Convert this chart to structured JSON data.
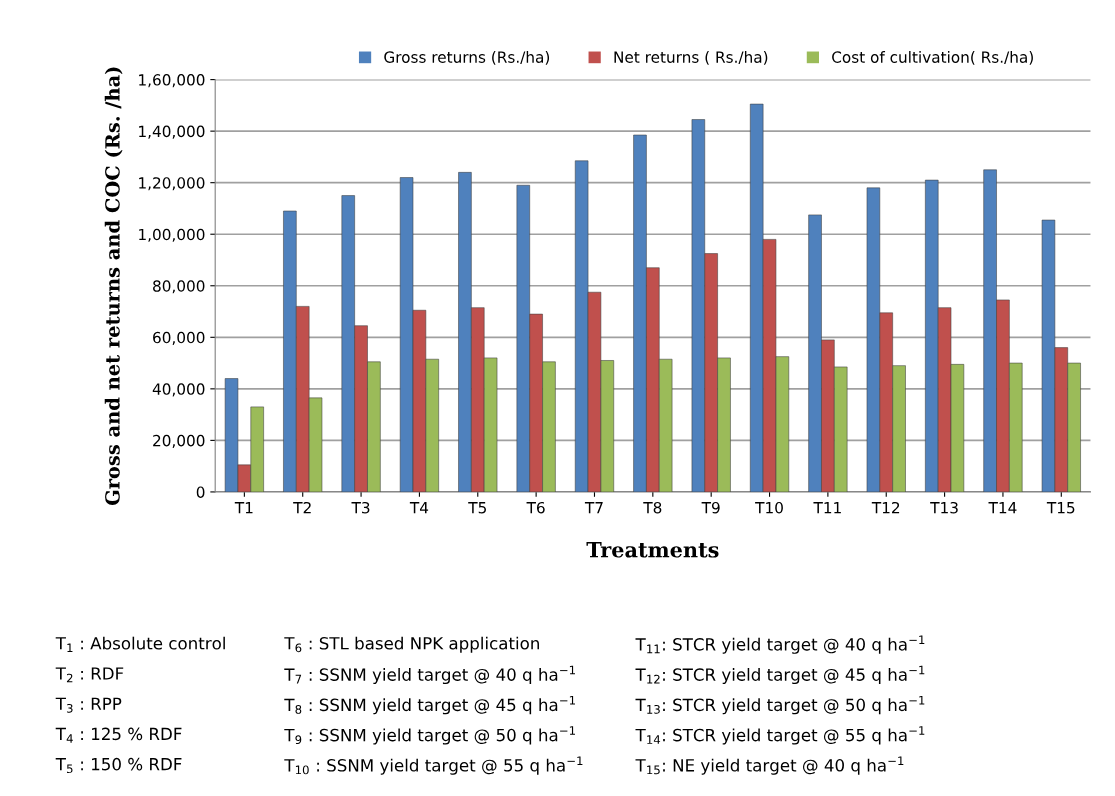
{
  "chart_data": {
    "type": "bar",
    "xlabel": "Treatments",
    "ylabel": "Gross and net returns and COC (Rs. /ha)",
    "categories": [
      "T1",
      "T2",
      "T3",
      "T4",
      "T5",
      "T6",
      "T7",
      "T8",
      "T9",
      "T10",
      "T11",
      "T12",
      "T13",
      "T14",
      "T15"
    ],
    "series": [
      {
        "name": "Gross returns (Rs./ha)",
        "color": "#4f81bd",
        "values": [
          44000,
          109000,
          115000,
          122000,
          124000,
          119000,
          128500,
          138500,
          144500,
          150500,
          107500,
          118000,
          121000,
          125000,
          105500
        ]
      },
      {
        "name": "Net returns ( Rs./ha)",
        "color": "#c0504d",
        "values": [
          10500,
          72000,
          64500,
          70500,
          71500,
          69000,
          77500,
          87000,
          92500,
          98000,
          59000,
          69500,
          71500,
          74500,
          56000
        ]
      },
      {
        "name": "Cost of cultivation( Rs./ha)",
        "color": "#9bbb59",
        "values": [
          33000,
          36500,
          50500,
          51500,
          52000,
          50500,
          51000,
          51500,
          52000,
          52500,
          48500,
          49000,
          49500,
          50000,
          50000
        ]
      }
    ],
    "ylim": [
      0,
      160000
    ],
    "yticks": [
      0,
      {
        "value": 20000,
        "label": "20,000"
      },
      {
        "value": 40000,
        "label": "40,000"
      },
      {
        "value": 60000,
        "label": "60,000"
      },
      {
        "value": 80000,
        "label": "80,000"
      },
      {
        "value": 100000,
        "label": "1,00,000"
      },
      {
        "value": 120000,
        "label": "1,20,000"
      },
      {
        "value": 140000,
        "label": "1,40,000"
      },
      {
        "value": 160000,
        "label": "1,60,000"
      }
    ],
    "grid": "y",
    "legend": "top",
    "annotations": [
      "T$_{1}$ : Absolute control",
      "T$_{2}$ : RDF",
      "T$_{3}$ : RPP",
      "T$_{4}$ : 125 % RDF",
      "T$_{5}$ : 150 % RDF",
      "T$_{6}$ : STL based NPK application",
      "T$_{7}$ : SSNM yield target @ 40 q ha$^{−1}$",
      "T$_{8}$ : SSNM yield target @ 45 q ha$^{−1}$",
      "T$_{9}$ : SSNM yield target @ 50 q ha$^{−1}$",
      "T$_{10}$ : SSNM yield target @ 55 q ha$^{−1}$",
      "T$_{11}$: STCR yield target @ 40 q ha$^{−1}$",
      "T$_{12}$: STCR yield target @ 45 q ha$^{−1}$",
      "T$_{13}$: STCR yield target @ 50 q ha$^{−1}$",
      "T$_{14}$: STCR yield target @ 55 q ha$^{−1}$",
      "T$_{15}$: NE yield target @ 40 q ha$^{−1}$"
    ]
  }
}
